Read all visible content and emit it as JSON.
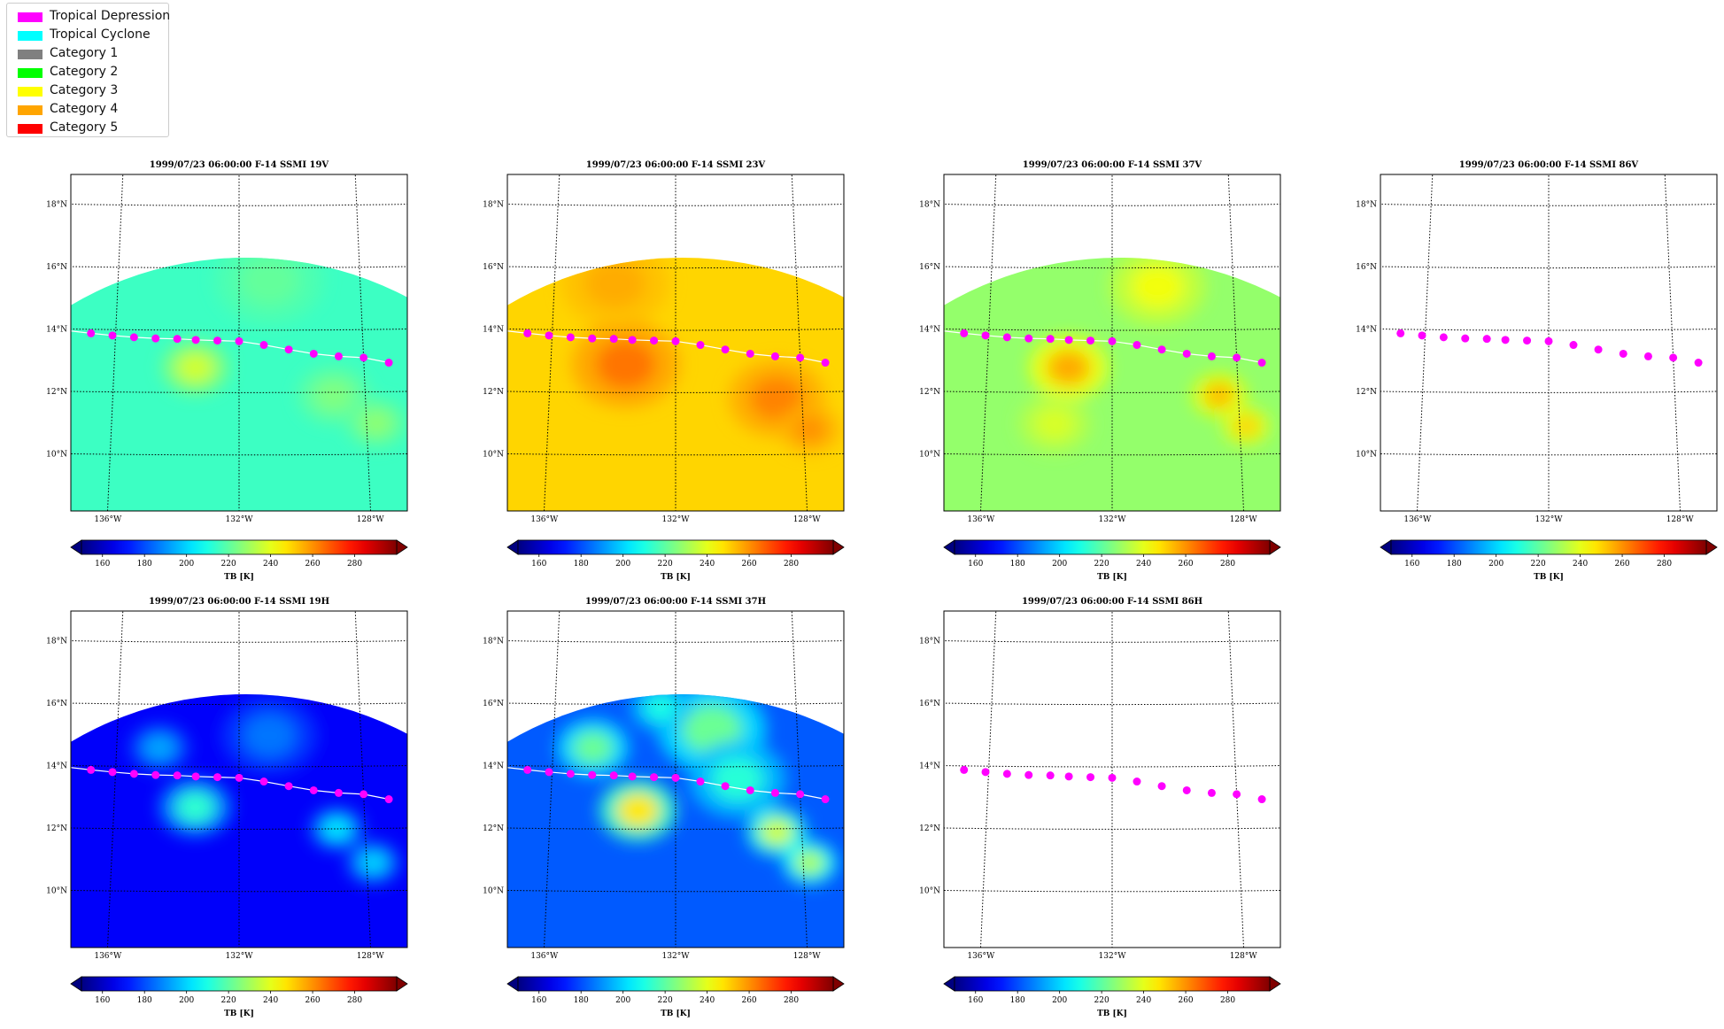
{
  "legend": [
    {
      "label": "Tropical Depression",
      "color": "#ff00ff"
    },
    {
      "label": "Tropical Cyclone",
      "color": "#00ffff"
    },
    {
      "label": "Category 1",
      "color": "#808080"
    },
    {
      "label": "Category 2",
      "color": "#00ff00"
    },
    {
      "label": "Category 3",
      "color": "#ffff00"
    },
    {
      "label": "Category 4",
      "color": "#ffa500"
    },
    {
      "label": "Category 5",
      "color": "#ff0000"
    }
  ],
  "chart_data": [
    {
      "type": "heatmap",
      "title": "1999/07/23 06:00:00  F-14 SSMI 19V",
      "channel": "19V",
      "field": "mostly cyan ~215K, warm ~235K near 13N 133W",
      "cbar_label": "TB [K]"
    },
    {
      "type": "heatmap",
      "title": "1999/07/23 06:00:00  F-14 SSMI 23V",
      "channel": "23V",
      "field": "yellow-orange ~250-260K",
      "cbar_label": "TB [K]"
    },
    {
      "type": "heatmap",
      "title": "1999/07/23 06:00:00  F-14 SSMI 37V",
      "channel": "37V",
      "field": "green ~230K, warm ~255K near 13N 133W",
      "cbar_label": "TB [K]"
    },
    {
      "type": "scatter",
      "title": "1999/07/23 06:00:00  F-14 SSMI 86V",
      "channel": "86V",
      "field": "no data",
      "cbar_label": "TB [K]"
    },
    {
      "type": "heatmap",
      "title": "1999/07/23 06:00:00  F-14 SSMI 19H",
      "channel": "19H",
      "field": "dark blue ~165K, ~215K near 13N 133W",
      "cbar_label": "TB [K]"
    },
    {
      "type": "heatmap",
      "title": "1999/07/23 06:00:00  F-14 SSMI 37H",
      "channel": "37H",
      "field": "blue ~180K, ~250K near 13N 133W",
      "cbar_label": "TB [K]"
    },
    {
      "type": "scatter",
      "title": "1999/07/23 06:00:00  F-14 SSMI 86H",
      "channel": "86H",
      "field": "no data",
      "cbar_label": "TB [K]"
    }
  ],
  "axes": {
    "lat_labels": [
      "18°N",
      "16°N",
      "14°N",
      "12°N",
      "10°N"
    ],
    "lat_values": [
      18,
      16,
      14,
      12,
      10
    ],
    "lon_labels": [
      "136°W",
      "132°W",
      "128°W"
    ],
    "lon_values": [
      -136,
      -132,
      -128
    ],
    "cbar_ticks": [
      "160",
      "180",
      "200",
      "220",
      "240",
      "260",
      "280"
    ],
    "cbar_values": [
      160,
      180,
      200,
      220,
      240,
      260,
      280
    ],
    "cbar_range": [
      150,
      300
    ],
    "cbar_colormap": "jet",
    "track_color": "#ff00ff",
    "track_category": "Tropical Depression"
  },
  "track": {
    "lon": [
      -137.6,
      -136.8,
      -136.1,
      -135.4,
      -134.7,
      -134.0,
      -133.4,
      -132.7,
      -132.0,
      -131.2,
      -130.4,
      -129.6,
      -128.8,
      -128.0,
      -127.2
    ],
    "lat": [
      13.95,
      13.87,
      13.81,
      13.76,
      13.73,
      13.72,
      13.69,
      13.67,
      13.65,
      13.53,
      13.38,
      13.24,
      13.15,
      13.1,
      12.93
    ]
  }
}
